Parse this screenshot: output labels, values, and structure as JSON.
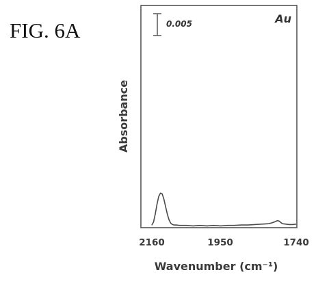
{
  "figure": {
    "label": "FIG. 6A"
  },
  "chart_data": {
    "type": "line",
    "xlabel": "Wavenumber (cm⁻¹)",
    "ylabel": "Absorbance",
    "xlim": [
      2160,
      1740
    ],
    "x_reversed": true,
    "x_ticks": [
      "2160",
      "1950",
      "1740"
    ],
    "y_ticks_shown": false,
    "grid": false,
    "scale_bar": {
      "label": "0.005",
      "value": 0.005
    },
    "annotation": "Au",
    "series": [
      {
        "x": [
          2160,
          2155,
          2150,
          2145,
          2140,
          2135,
          2130,
          2125,
          2120,
          2115,
          2110,
          2105,
          2100,
          2095,
          2090,
          2080,
          2060,
          2040,
          2020,
          2000,
          1980,
          1960,
          1940,
          1920,
          1900,
          1880,
          1860,
          1840,
          1820,
          1810,
          1800,
          1795,
          1790,
          1785,
          1780,
          1770,
          1760,
          1750,
          1740
        ],
        "values": [
          0.0003,
          0.001,
          0.0028,
          0.005,
          0.0068,
          0.0076,
          0.0074,
          0.0062,
          0.0045,
          0.0028,
          0.0015,
          0.0007,
          0.0004,
          0.0003,
          0.0003,
          0.0002,
          0.0002,
          0.0001,
          0.0002,
          0.0001,
          0.0002,
          0.0001,
          0.0002,
          0.0002,
          0.0003,
          0.0003,
          0.0004,
          0.0005,
          0.0006,
          0.0008,
          0.0011,
          0.0013,
          0.0012,
          0.0009,
          0.0006,
          0.0005,
          0.0004,
          0.0004,
          0.0005
        ]
      }
    ]
  }
}
